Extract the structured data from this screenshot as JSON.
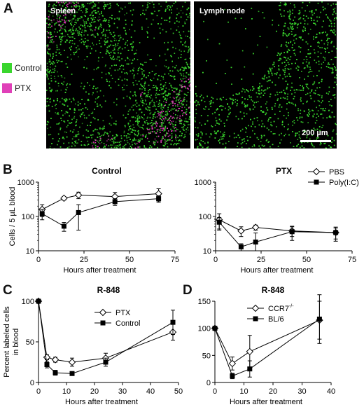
{
  "figure": {
    "panel_letters": [
      "A",
      "B",
      "C",
      "D"
    ],
    "panel_a": {
      "legend": [
        {
          "label": "Control",
          "color": "#3ad62e"
        },
        {
          "label": "PTX",
          "color": "#e040b8"
        }
      ],
      "left_image_label": "Spleen",
      "right_image_label": "Lymph node",
      "scale_bar_label": "200 µm"
    }
  },
  "chart_data": [
    {
      "id": "b-control",
      "type": "line",
      "title": "Control",
      "xlabel": "Hours after treatment",
      "ylabel": "Cells / 5 µL blood",
      "yscale": "log",
      "xlim": [
        0,
        75
      ],
      "ylim": [
        10,
        1000
      ],
      "xticks": [
        "0",
        "25",
        "50",
        "75"
      ],
      "yticks": [
        "10",
        "100",
        "1000"
      ],
      "series": [
        {
          "name": "PBS",
          "marker": "open-diamond",
          "x": [
            2,
            14,
            22,
            42,
            66
          ],
          "y": [
            160,
            340,
            420,
            380,
            460
          ],
          "err": [
            60,
            40,
            90,
            120,
            180
          ]
        },
        {
          "name": "Poly(I:C)",
          "marker": "filled-square",
          "x": [
            2,
            14,
            22,
            42,
            66
          ],
          "y": [
            120,
            52,
            130,
            270,
            330
          ],
          "err": [
            40,
            15,
            90,
            60,
            70
          ]
        }
      ]
    },
    {
      "id": "b-ptx",
      "type": "line",
      "title": "PTX",
      "xlabel": "Hours after treatment",
      "yscale": "log",
      "xlim": [
        0,
        75
      ],
      "ylim": [
        10,
        1000
      ],
      "xticks": [
        "0",
        "25",
        "50",
        "75"
      ],
      "yticks": [
        "10",
        "100",
        "1000"
      ],
      "legend": [
        "PBS",
        "Poly(I:C)"
      ],
      "series": [
        {
          "name": "PBS",
          "marker": "open-diamond",
          "x": [
            2,
            14,
            22,
            42,
            66
          ],
          "y": [
            80,
            38,
            48,
            38,
            34
          ],
          "err": [
            40,
            12,
            8,
            12,
            12
          ]
        },
        {
          "name": "Poly(I:C)",
          "marker": "filled-square",
          "x": [
            2,
            14,
            22,
            42,
            66
          ],
          "y": [
            68,
            13,
            18,
            36,
            34
          ],
          "err": [
            25,
            3,
            15,
            16,
            15
          ]
        }
      ]
    },
    {
      "id": "c",
      "type": "line",
      "title": "R-848",
      "xlabel": "Hours after treatment",
      "ylabel": "Percent labeled cells in blood",
      "xlim": [
        0,
        50
      ],
      "ylim": [
        0,
        100
      ],
      "xticks": [
        "0",
        "10",
        "20",
        "30",
        "40",
        "50"
      ],
      "yticks": [
        "0",
        "50",
        "100"
      ],
      "legend": [
        "PTX",
        "Control"
      ],
      "series": [
        {
          "name": "PTX",
          "marker": "open-diamond",
          "x": [
            0,
            3,
            6,
            12,
            24,
            48
          ],
          "y": [
            100,
            31,
            28,
            25,
            30,
            62
          ],
          "err": [
            0,
            3,
            3,
            5,
            6,
            10
          ]
        },
        {
          "name": "Control",
          "marker": "filled-square",
          "x": [
            0,
            3,
            6,
            12,
            24,
            48
          ],
          "y": [
            100,
            22,
            12,
            11,
            25,
            74
          ],
          "err": [
            0,
            4,
            3,
            2,
            5,
            15
          ]
        }
      ]
    },
    {
      "id": "d",
      "type": "line",
      "title": "R-848",
      "xlabel": "Hours after treatment",
      "xlim": [
        0,
        40
      ],
      "ylim": [
        0,
        150
      ],
      "xticks": [
        "0",
        "10",
        "20",
        "30",
        "40"
      ],
      "yticks": [
        "0",
        "50",
        "100",
        "150"
      ],
      "legend": [
        "CCR7",
        "BL/6"
      ],
      "legend_superscript": "-/-",
      "series": [
        {
          "name": "CCR7-/-",
          "marker": "open-diamond",
          "x": [
            0,
            6,
            12,
            36
          ],
          "y": [
            100,
            35,
            57,
            115
          ],
          "err": [
            0,
            12,
            30,
            35
          ]
        },
        {
          "name": "BL/6",
          "marker": "filled-square",
          "x": [
            0,
            6,
            12,
            36
          ],
          "y": [
            100,
            12,
            25,
            117
          ],
          "err": [
            0,
            5,
            15,
            45
          ]
        }
      ]
    }
  ]
}
